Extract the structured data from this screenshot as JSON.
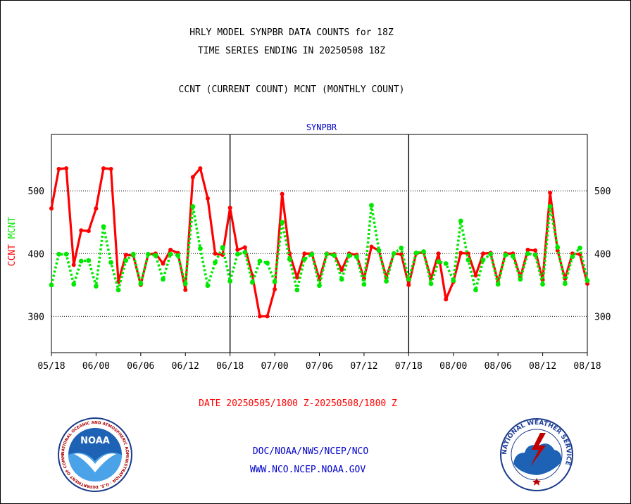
{
  "header": {
    "title_line1": "HRLY MODEL SYNPBR DATA COUNTS for 18Z",
    "title_line2": "TIME SERIES ENDING IN 20250508 18Z",
    "subtitle": "CCNT (CURRENT COUNT) MCNT (MONTHLY COUNT)"
  },
  "chart_data": {
    "type": "line",
    "title": "SYNPBR",
    "ylabel_series_1": "CCNT",
    "ylabel_series_2": "MCNT",
    "xlabel": "DATE 20250505/1800 Z-20250508/1800 Z",
    "x_start_hour": 0,
    "x_end_hour": 72,
    "ylim": [
      242,
      590
    ],
    "y_ticks": [
      300,
      400,
      500
    ],
    "x_tick_labels": [
      "05/18",
      "06/00",
      "06/06",
      "06/12",
      "06/18",
      "07/00",
      "07/06",
      "07/12",
      "07/18",
      "08/00",
      "08/06",
      "08/12",
      "08/18"
    ],
    "day_dividers_hours": [
      24,
      48
    ],
    "grid": "dotted horizontal at 300, 400, 500",
    "series": [
      {
        "name": "CCNT",
        "color": "#ff0000",
        "style": "solid",
        "values": [
          472,
          535,
          536,
          382,
          437,
          436,
          472,
          536,
          535,
          355,
          398,
          397,
          350,
          399,
          400,
          384,
          406,
          401,
          342,
          522,
          536,
          488,
          400,
          398,
          473,
          406,
          410,
          365,
          300,
          300,
          343,
          495,
          400,
          362,
          400,
          400,
          359,
          400,
          399,
          374,
          400,
          398,
          360,
          411,
          405,
          362,
          400,
          399,
          350,
          400,
          402,
          360,
          400,
          327,
          355,
          401,
          400,
          365,
          400,
          401,
          355,
          400,
          400,
          362,
          406,
          405,
          358,
          497,
          405,
          360,
          400,
          399,
          352
        ]
      },
      {
        "name": "MCNT",
        "color": "#00e800",
        "style": "dotted",
        "values": [
          350,
          399,
          399,
          351,
          388,
          389,
          348,
          443,
          386,
          342,
          389,
          399,
          352,
          399,
          397,
          359,
          399,
          397,
          352,
          475,
          408,
          349,
          386,
          410,
          356,
          399,
          402,
          354,
          388,
          385,
          355,
          450,
          391,
          342,
          391,
          399,
          349,
          399,
          397,
          359,
          397,
          395,
          351,
          477,
          405,
          356,
          400,
          409,
          359,
          401,
          403,
          352,
          387,
          384,
          357,
          452,
          390,
          342,
          390,
          399,
          351,
          398,
          396,
          359,
          400,
          398,
          351,
          475,
          410,
          352,
          395,
          409,
          357
        ]
      }
    ]
  },
  "y_axis_labels": {
    "ccnt": "CCNT",
    "mcnt": "MCNT"
  },
  "footer": {
    "date_range": "DATE 20250505/1800 Z-20250508/1800 Z",
    "org_line": "DOC/NOAA/NWS/NCEP/NCO",
    "url_line": "WWW.NCO.NCEP.NOAA.GOV"
  },
  "logos": {
    "noaa_text": "NOAA",
    "noaa_ring_text": "NATIONAL OCEANIC AND ATMOSPHERIC ADMINISTRATION · U.S. DEPARTMENT OF COMMERCE",
    "nws_ring_text": "NATIONAL WEATHER SERVICE"
  },
  "colors": {
    "ccnt": "#ff0000",
    "mcnt": "#00e800",
    "date_text": "#ff0000",
    "footer_text": "#0000cc",
    "chart_title": "#0000cc"
  }
}
